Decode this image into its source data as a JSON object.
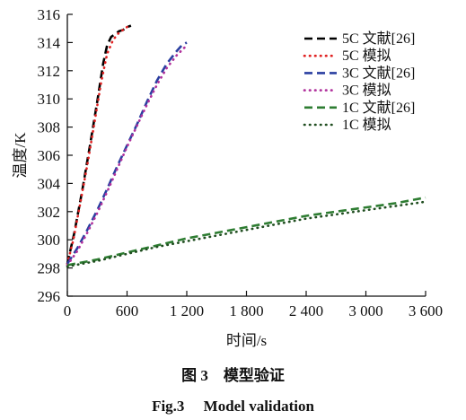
{
  "chart_data": {
    "type": "line",
    "xlabel": "时间/s",
    "ylabel": "温度/K",
    "xlim": [
      0,
      3600
    ],
    "ylim": [
      296,
      316
    ],
    "xticks": [
      0,
      600,
      1200,
      1800,
      2400,
      3000,
      3600
    ],
    "xtick_labels": [
      "0",
      "600",
      "1 200",
      "1 800",
      "2 400",
      "3 000",
      "3 600"
    ],
    "yticks": [
      296,
      298,
      300,
      302,
      304,
      306,
      308,
      310,
      312,
      314,
      316
    ],
    "grid": false,
    "legend_position": "top-right",
    "series": [
      {
        "name": "5C 文献[26]",
        "color": "#000000",
        "style": "dash",
        "x": [
          0,
          70,
          150,
          230,
          300,
          360,
          400,
          440,
          480,
          520,
          560,
          600,
          640
        ],
        "y": [
          298.3,
          300.5,
          303.5,
          306.8,
          309.8,
          312.5,
          313.8,
          314.4,
          314.6,
          314.8,
          314.9,
          315.1,
          315.2
        ]
      },
      {
        "name": "5C 模拟",
        "color": "#e02020",
        "style": "dot",
        "x": [
          0,
          60,
          130,
          200,
          270,
          340,
          400,
          460,
          520,
          580,
          640
        ],
        "y": [
          298.3,
          300.0,
          302.6,
          305.3,
          308.2,
          311.2,
          313.2,
          314.2,
          314.7,
          315.0,
          315.3
        ]
      },
      {
        "name": "3C 文献[26]",
        "color": "#2a3fa0",
        "style": "dash",
        "x": [
          0,
          100,
          200,
          300,
          400,
          500,
          600,
          700,
          800,
          900,
          1000,
          1100,
          1150,
          1200
        ],
        "y": [
          298.3,
          299.4,
          300.7,
          302.1,
          303.6,
          305.2,
          306.7,
          308.2,
          309.8,
          311.3,
          312.5,
          313.4,
          313.8,
          314.0
        ]
      },
      {
        "name": "3C 模拟",
        "color": "#b0309c",
        "style": "dot",
        "x": [
          0,
          100,
          200,
          300,
          400,
          500,
          600,
          700,
          800,
          900,
          1000,
          1100,
          1200
        ],
        "y": [
          298.2,
          299.2,
          300.5,
          301.9,
          303.4,
          305.0,
          306.6,
          308.1,
          309.6,
          311.0,
          312.2,
          313.1,
          313.8
        ]
      },
      {
        "name": "1C 文献[26]",
        "color": "#2e7d32",
        "style": "dash",
        "x": [
          0,
          300,
          600,
          900,
          1200,
          1500,
          1800,
          2100,
          2400,
          2700,
          3000,
          3300,
          3600
        ],
        "y": [
          298.2,
          298.6,
          299.1,
          299.6,
          300.1,
          300.5,
          300.9,
          301.3,
          301.7,
          302.0,
          302.3,
          302.6,
          303.0
        ]
      },
      {
        "name": "1C 模拟",
        "color": "#1f4d1f",
        "style": "dot",
        "x": [
          0,
          300,
          600,
          900,
          1200,
          1500,
          1800,
          2100,
          2400,
          2700,
          3000,
          3300,
          3600
        ],
        "y": [
          298.1,
          298.5,
          299.0,
          299.5,
          299.9,
          300.3,
          300.7,
          301.1,
          301.5,
          301.8,
          302.1,
          302.4,
          302.7
        ]
      }
    ]
  },
  "caption": {
    "cn": "图 3　模型验证",
    "en": "Fig.3　 Model validation"
  }
}
